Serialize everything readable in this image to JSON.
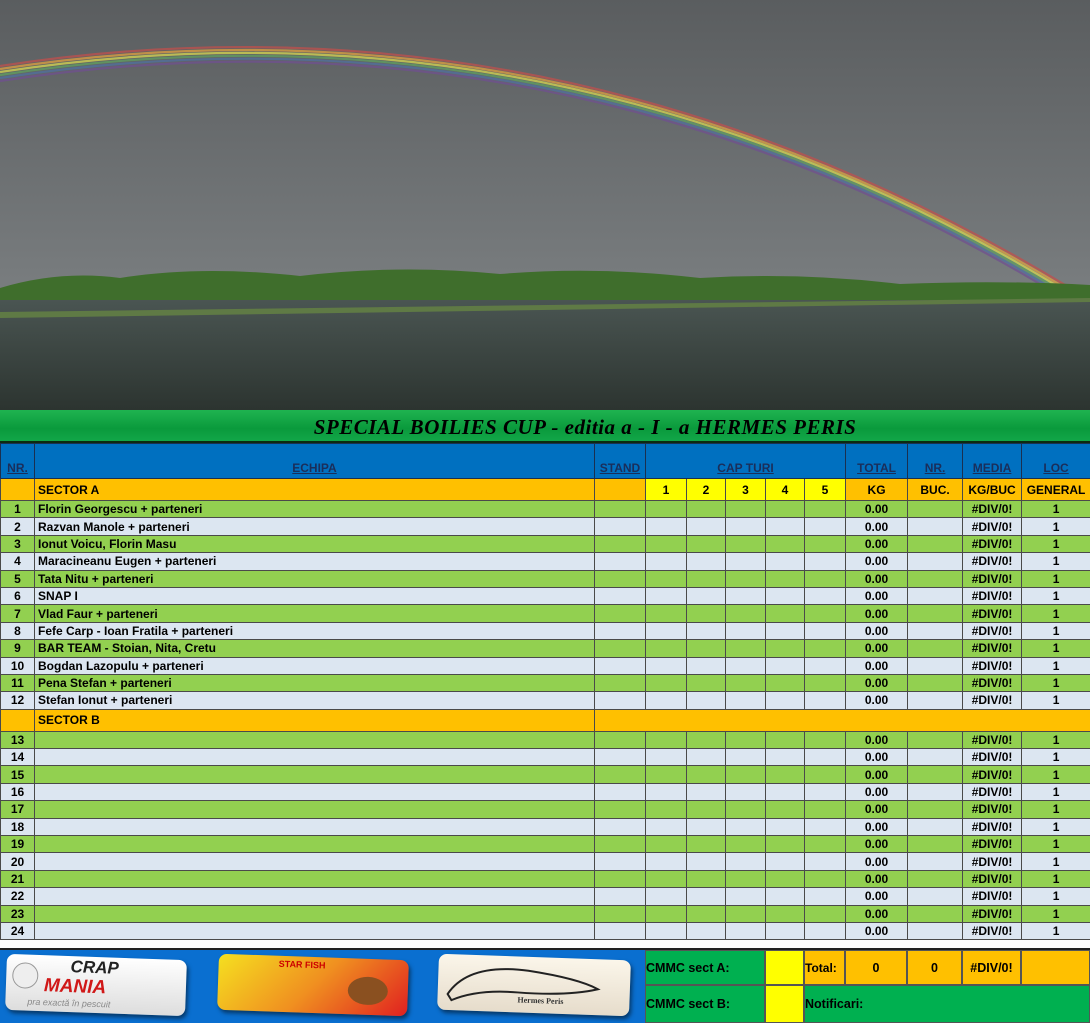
{
  "title": "SPECIAL BOILIES CUP - editia  a - I - a  HERMES PERIS",
  "headers": {
    "nr": "NR.",
    "echipa": "ECHIPA",
    "stand": "STAND",
    "cap_turi": "CAP  TURI",
    "total": "TOTAL",
    "nr_buc": "NR.",
    "media": "MEDIA",
    "loc": "LOC"
  },
  "subheaders": {
    "rounds": [
      "1",
      "2",
      "3",
      "4",
      "5"
    ],
    "kg": "KG",
    "buc": "BUC.",
    "kg_buc": "KG/BUC",
    "general": "GENERAL"
  },
  "sectors": [
    {
      "name": "SECTOR  A",
      "rows": [
        {
          "nr": "1",
          "team": "Florin Georgescu + parteneri",
          "total": "0.00",
          "media": "#DIV/0!",
          "loc": "1"
        },
        {
          "nr": "2",
          "team": "Razvan Manole + parteneri",
          "total": "0.00",
          "media": "#DIV/0!",
          "loc": "1"
        },
        {
          "nr": "3",
          "team": "Ionut Voicu, Florin Masu",
          "total": "0.00",
          "media": "#DIV/0!",
          "loc": "1"
        },
        {
          "nr": "4",
          "team": "Maracineanu Eugen + parteneri",
          "total": "0.00",
          "media": "#DIV/0!",
          "loc": "1"
        },
        {
          "nr": "5",
          "team": "Tata Nitu + parteneri",
          "total": "0.00",
          "media": "#DIV/0!",
          "loc": "1"
        },
        {
          "nr": "6",
          "team": "SNAP I",
          "total": "0.00",
          "media": "#DIV/0!",
          "loc": "1"
        },
        {
          "nr": "7",
          "team": "Vlad Faur + parteneri",
          "total": "0.00",
          "media": "#DIV/0!",
          "loc": "1"
        },
        {
          "nr": "8",
          "team": "Fefe Carp - Ioan Fratila + parteneri",
          "total": "0.00",
          "media": "#DIV/0!",
          "loc": "1"
        },
        {
          "nr": "9",
          "team": "BAR TEAM - Stoian, Nita, Cretu",
          "total": "0.00",
          "media": "#DIV/0!",
          "loc": "1"
        },
        {
          "nr": "10",
          "team": "Bogdan Lazopulu + parteneri",
          "total": "0.00",
          "media": "#DIV/0!",
          "loc": "1"
        },
        {
          "nr": "11",
          "team": "Pena Stefan + parteneri",
          "total": "0.00",
          "media": "#DIV/0!",
          "loc": "1"
        },
        {
          "nr": "12",
          "team": "Stefan Ionut + parteneri",
          "total": "0.00",
          "media": "#DIV/0!",
          "loc": "1"
        }
      ]
    },
    {
      "name": "SECTOR  B",
      "rows": [
        {
          "nr": "13",
          "team": "",
          "total": "0.00",
          "media": "#DIV/0!",
          "loc": "1"
        },
        {
          "nr": "14",
          "team": "",
          "total": "0.00",
          "media": "#DIV/0!",
          "loc": "1"
        },
        {
          "nr": "15",
          "team": "",
          "total": "0.00",
          "media": "#DIV/0!",
          "loc": "1"
        },
        {
          "nr": "16",
          "team": "",
          "total": "0.00",
          "media": "#DIV/0!",
          "loc": "1"
        },
        {
          "nr": "17",
          "team": "",
          "total": "0.00",
          "media": "#DIV/0!",
          "loc": "1"
        },
        {
          "nr": "18",
          "team": "",
          "total": "0.00",
          "media": "#DIV/0!",
          "loc": "1"
        },
        {
          "nr": "19",
          "team": "",
          "total": "0.00",
          "media": "#DIV/0!",
          "loc": "1"
        },
        {
          "nr": "20",
          "team": "",
          "total": "0.00",
          "media": "#DIV/0!",
          "loc": "1"
        },
        {
          "nr": "21",
          "team": "",
          "total": "0.00",
          "media": "#DIV/0!",
          "loc": "1"
        },
        {
          "nr": "22",
          "team": "",
          "total": "0.00",
          "media": "#DIV/0!",
          "loc": "1"
        },
        {
          "nr": "23",
          "team": "",
          "total": "0.00",
          "media": "#DIV/0!",
          "loc": "1"
        },
        {
          "nr": "24",
          "team": "",
          "total": "0.00",
          "media": "#DIV/0!",
          "loc": "1"
        }
      ]
    }
  ],
  "footer": {
    "logos": [
      "CRAP MANIA",
      "STAR FISH",
      "Hermes Peris"
    ],
    "crapmania_tagline": "pra exactă în pescuit",
    "cmmc_a": "CMMC sect A:",
    "cmmc_b": "CMMC sect B:",
    "total_label": "Total:",
    "total_kg": "0",
    "total_buc": "0",
    "total_media": "#DIV/0!",
    "notificari": "Notificari:"
  },
  "colors": {
    "header_blue": "#0070c0",
    "sector_orange": "#ffc000",
    "rounds_yellow": "#ffff00",
    "row_green": "#92d050",
    "row_light": "#dce6f1",
    "title_green": "#0a9a3c"
  }
}
